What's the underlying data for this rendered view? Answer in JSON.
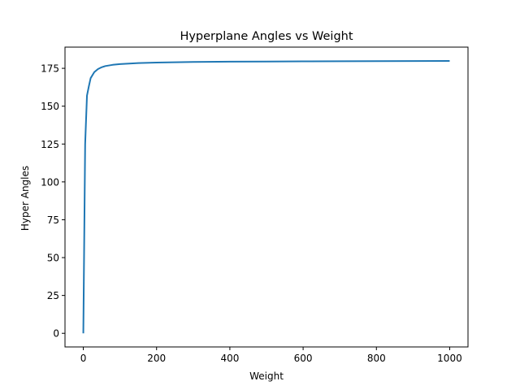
{
  "chart_data": {
    "type": "line",
    "title": "Hyperplane Angles vs Weight",
    "xlabel": "Weight",
    "ylabel": "Hyper Angles",
    "xlim": [
      -50,
      1050
    ],
    "ylim": [
      -9,
      189
    ],
    "xticks": [
      0,
      200,
      400,
      600,
      800,
      1000
    ],
    "yticks": [
      0,
      25,
      50,
      75,
      100,
      125,
      150,
      175
    ],
    "grid": false,
    "series": [
      {
        "color": "#1f77b4",
        "x": [
          0,
          5,
          10,
          15,
          20,
          30,
          40,
          50,
          60,
          80,
          100,
          150,
          200,
          300,
          400,
          500,
          600,
          700,
          800,
          900,
          1000
        ],
        "y": [
          0,
          125,
          157,
          163,
          168.5,
          172.5,
          174.5,
          175.7,
          176.5,
          177.3,
          177.8,
          178.5,
          178.8,
          179.2,
          179.4,
          179.5,
          179.6,
          179.7,
          179.75,
          179.8,
          179.85
        ]
      }
    ]
  }
}
